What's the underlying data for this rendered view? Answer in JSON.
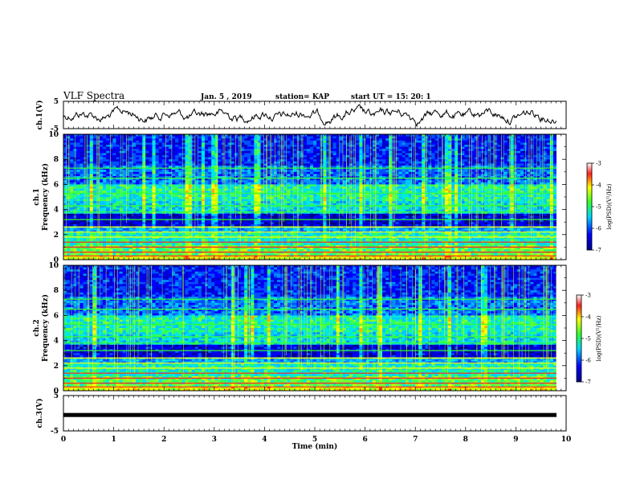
{
  "header": {
    "title": "VLF Spectra",
    "date": "Jan. 5 , 2019",
    "station": "station= KAP",
    "start": "start UT = 15: 20: 1"
  },
  "chart_data": {
    "type": "heatmap",
    "xlabel": "Time (min)",
    "xlim": [
      0,
      10
    ],
    "xticks": [
      "0",
      "1",
      "2",
      "3",
      "4",
      "5",
      "6",
      "7",
      "8",
      "9",
      "10"
    ],
    "panels": {
      "ch1_wave": {
        "ylabel": "ch.1(V)",
        "ylim": [
          -5,
          5
        ],
        "yticks": [
          "5",
          "-5"
        ]
      },
      "ch1_spec": {
        "ylabel_top": "ch.1",
        "ylabel": "Frequency (kHz)",
        "ylim": [
          0,
          10
        ],
        "yticks": [
          "0",
          "2",
          "4",
          "6",
          "8",
          "10"
        ]
      },
      "ch2_spec": {
        "ylabel_top": "ch.2",
        "ylabel": "Frequency (kHz)",
        "ylim": [
          0,
          10
        ],
        "yticks": [
          "0",
          "2",
          "4",
          "6",
          "8",
          "10"
        ]
      },
      "ch3_wave": {
        "ylabel": "ch.3(V)",
        "ylim": [
          -5,
          5
        ],
        "yticks": [
          "5",
          "-5"
        ],
        "value": -0.5
      }
    },
    "colorbar": {
      "label": "log(PSD)(V²/Hz)",
      "range": [
        -7,
        -3
      ],
      "ticks": [
        "-3",
        "-4",
        "-5",
        "-6",
        "-7"
      ]
    },
    "bands_kHz": [
      0.3,
      0.6,
      1.0,
      1.4,
      1.8,
      2.2,
      2.6,
      3.2,
      3.8,
      4.3,
      5.3,
      6.5,
      7.3
    ]
  },
  "colors": {
    "low": "#00008b",
    "mid": "#00d4ff",
    "green": "#30ff30",
    "yellow": "#ffff00",
    "high": "#ff0000"
  }
}
